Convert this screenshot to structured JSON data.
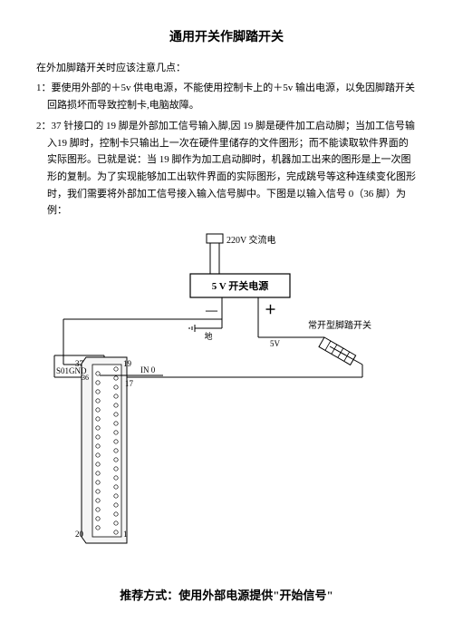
{
  "title": "通用开关作脚踏开关",
  "intro": "在外加脚踏开关时应该注意几点：",
  "item1_prefix": "1：",
  "item1_text": "要使用外部的＋5v 供电电源，不能使用控制卡上的＋5v 输出电源，以免因脚踏开关回路损坏而导致控制卡,电脑故障。",
  "item2_prefix": "2：",
  "item2_text": "37 针接口的 19 脚是外部加工信号输入脚,因 19 脚是硬件加工启动脚；当加工信号输入19 脚时，控制卡只输出上一次在硬件里储存的文件图形；而不能读取软件界面的实际图形。已就是说：当 19 脚作为加工启动脚时，机器加工出来的图形是上一次图形的复制。为了实现能够加工出软件界面的实际图形，完成跳号等这种连续变化图形时，我们需要将外部加工信号接入输入信号脚中。下图是以输入信号 0（36 脚）为例：",
  "recommend": "推荐方式：使用外部电源提供\"开始信号\"",
  "diagram": {
    "labels": {
      "ac_power": "220V  交流电",
      "ps_box": "5 V  开关电源",
      "minus": "—",
      "plus": "＋",
      "ground": "地",
      "v5": "5V",
      "switch_label": "常开型脚踏开关",
      "pin19": "19",
      "pin37": "37",
      "pin1": "1",
      "pin17": "17",
      "pin20": "20",
      "conn_label": "S01GND",
      "in0": "IN 0",
      "pin36": "36"
    },
    "colors": {
      "stroke": "#000000",
      "fill_white": "#ffffff",
      "text": "#000000"
    }
  }
}
